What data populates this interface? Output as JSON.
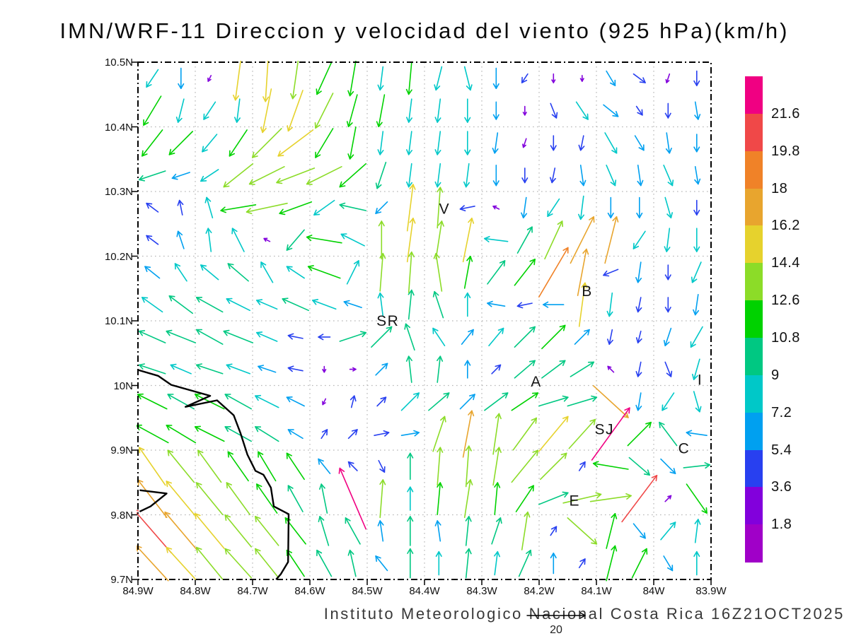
{
  "title": "IMN/WRF-11 Direccion y velocidad del viento (925 hPa)(km/h)",
  "footer": "Instituto Meteorologico Nacional Costa Rica 16Z21OCT2025",
  "axes": {
    "x_labels": [
      "84.9W",
      "84.8W",
      "84.7W",
      "84.6W",
      "84.5W",
      "84.4W",
      "84.3W",
      "84.2W",
      "84.1W",
      "84W",
      "83.9W"
    ],
    "y_labels": [
      "10.5N",
      "10.4N",
      "10.3N",
      "10.2N",
      "10.1N",
      "10N",
      "9.9N",
      "9.8N",
      "9.7N"
    ],
    "lon_range": [
      -84.9,
      -83.9
    ],
    "lat_range": [
      9.7,
      10.5
    ],
    "grid_step_deg": 0.1,
    "gridline_color": "#b8b8b8"
  },
  "colorbar": {
    "labels_top_to_bottom": [
      "21.6",
      "19.8",
      "18",
      "16.2",
      "14.4",
      "12.6",
      "10.8",
      "9",
      "7.2",
      "5.4",
      "3.6",
      "1.8"
    ],
    "levels": [
      1.8,
      3.6,
      5.4,
      7.2,
      9,
      10.8,
      12.6,
      14.4,
      16.2,
      18,
      19.8,
      21.6
    ],
    "colors": [
      "#a000c8",
      "#8200dc",
      "#2840f0",
      "#00a0f0",
      "#00c8c8",
      "#00c882",
      "#00d200",
      "#8cdc28",
      "#e6d22d",
      "#e8a52e",
      "#f08228",
      "#f04848",
      "#f00082"
    ]
  },
  "reference_arrow": {
    "value": 20,
    "label": "20"
  },
  "stations": [
    {
      "label": "V",
      "lon": -84.365,
      "lat": 10.273
    },
    {
      "label": "B",
      "lon": -84.116,
      "lat": 10.146
    },
    {
      "label": "SR",
      "lon": -84.464,
      "lat": 10.1
    },
    {
      "label": "A",
      "lon": -84.205,
      "lat": 10.006
    },
    {
      "label": "SJ",
      "lon": -84.086,
      "lat": 9.932
    },
    {
      "label": "C",
      "lon": -83.947,
      "lat": 9.903
    },
    {
      "label": "E",
      "lon": -84.138,
      "lat": 9.822
    },
    {
      "label": "I",
      "lon": -83.919,
      "lat": 10.009
    }
  ],
  "coastline": {
    "main": [
      [
        -84.9,
        10.024
      ],
      [
        -84.865,
        10.015
      ],
      [
        -84.842,
        10.001
      ],
      [
        -84.774,
        9.984
      ],
      [
        -84.817,
        9.967
      ],
      [
        -84.762,
        9.977
      ],
      [
        -84.733,
        9.954
      ],
      [
        -84.721,
        9.926
      ],
      [
        -84.709,
        9.893
      ],
      [
        -84.695,
        9.868
      ],
      [
        -84.681,
        9.862
      ],
      [
        -84.668,
        9.842
      ],
      [
        -84.663,
        9.813
      ],
      [
        -84.637,
        9.801
      ],
      [
        -84.638,
        9.727
      ],
      [
        -84.651,
        9.708
      ],
      [
        -84.659,
        9.7
      ]
    ],
    "spit": [
      [
        -84.897,
        9.838
      ],
      [
        -84.85,
        9.833
      ],
      [
        -84.878,
        9.813
      ],
      [
        -84.897,
        9.805
      ]
    ]
  },
  "chart_data": {
    "type": "vector-field",
    "title": "IMN/WRF-11 Direccion y velocidad del viento (925 hPa)(km/h)",
    "units": "km/h",
    "level": "925 hPa",
    "valid_time": "16Z21OCT2025",
    "speed_levels": [
      1.8,
      3.6,
      5.4,
      7.2,
      9,
      10.8,
      12.6,
      14.4,
      16.2,
      18,
      19.8,
      21.6
    ],
    "reference_speed": 20,
    "grid_lons": [
      -84.875,
      -84.825,
      -84.775,
      -84.725,
      -84.675,
      -84.625,
      -84.575,
      -84.525,
      -84.475,
      -84.425,
      -84.375,
      -84.325,
      -84.275,
      -84.225,
      -84.175,
      -84.125,
      -84.075,
      -84.025,
      -83.975,
      -83.925
    ],
    "grid_lats": [
      10.475,
      10.425,
      10.375,
      10.325,
      10.275,
      10.225,
      10.175,
      10.125,
      10.075,
      10.025,
      9.975,
      9.925,
      9.875,
      9.825,
      9.775,
      9.725
    ],
    "uv": [
      [
        [
          -4,
          -6
        ],
        [
          0,
          -7
        ],
        [
          -1,
          -2
        ],
        [
          -2,
          -15
        ],
        [
          -1,
          -16
        ],
        [
          -2,
          -14
        ],
        [
          -5,
          -11
        ],
        [
          -2,
          -12
        ],
        [
          -1,
          -8
        ],
        [
          -1,
          -11
        ],
        [
          -2,
          -8
        ],
        [
          2,
          -8
        ],
        [
          0,
          -7
        ],
        [
          -2,
          -3
        ],
        [
          0,
          -3
        ],
        [
          0,
          -2
        ],
        [
          3,
          -5
        ],
        [
          4,
          -3
        ],
        [
          -1,
          -3
        ],
        [
          0,
          -5
        ]
      ],
      [
        [
          -6,
          -10
        ],
        [
          -2,
          -8
        ],
        [
          -4,
          -6
        ],
        [
          -1,
          -8
        ],
        [
          -3,
          -15
        ],
        [
          -5,
          -14
        ],
        [
          -6,
          -12
        ],
        [
          -3,
          -11
        ],
        [
          -2,
          -11
        ],
        [
          -1,
          -8
        ],
        [
          -1,
          -8
        ],
        [
          0,
          -8
        ],
        [
          0,
          -6
        ],
        [
          0,
          -3
        ],
        [
          2,
          -5
        ],
        [
          4,
          -6
        ],
        [
          5,
          -4
        ],
        [
          2,
          -3
        ],
        [
          0,
          -5
        ],
        [
          1,
          -6
        ]
      ],
      [
        [
          -7,
          -9
        ],
        [
          -8,
          -8
        ],
        [
          -5,
          -6
        ],
        [
          -6,
          -9
        ],
        [
          -10,
          -10
        ],
        [
          -12,
          -9
        ],
        [
          -6,
          -10
        ],
        [
          -2,
          -11
        ],
        [
          -1,
          -8
        ],
        [
          -1,
          -8
        ],
        [
          -1,
          -8
        ],
        [
          0,
          -8
        ],
        [
          -1,
          -7
        ],
        [
          -1,
          -3
        ],
        [
          0,
          -5
        ],
        [
          -1,
          -5
        ],
        [
          4,
          -7
        ],
        [
          3,
          -5
        ],
        [
          1,
          -7
        ],
        [
          0,
          -6
        ]
      ],
      [
        [
          -9,
          -3
        ],
        [
          -6,
          -2
        ],
        [
          -6,
          -4
        ],
        [
          -10,
          -8
        ],
        [
          -12,
          -6
        ],
        [
          -13,
          -5
        ],
        [
          -12,
          -6
        ],
        [
          -9,
          -8
        ],
        [
          -3,
          -9
        ],
        [
          -1,
          -8
        ],
        [
          -1,
          -8
        ],
        [
          -1,
          -8
        ],
        [
          0,
          -7
        ],
        [
          0,
          -5
        ],
        [
          -1,
          -5
        ],
        [
          1,
          -7
        ],
        [
          3,
          -7
        ],
        [
          1,
          -7
        ],
        [
          3,
          -7
        ],
        [
          1,
          -6
        ]
      ],
      [
        [
          -4,
          3
        ],
        [
          -1,
          5
        ],
        [
          -2,
          7
        ],
        [
          -12,
          -2
        ],
        [
          -14,
          -3
        ],
        [
          -11,
          -4
        ],
        [
          -7,
          -5
        ],
        [
          -9,
          2
        ],
        [
          -4,
          -4
        ],
        [
          2,
          16
        ],
        [
          1,
          14
        ],
        [
          -5,
          -1
        ],
        [
          -2,
          1
        ],
        [
          -1,
          -7
        ],
        [
          -4,
          -6
        ],
        [
          -1,
          -8
        ],
        [
          0,
          -7
        ],
        [
          0,
          -7
        ],
        [
          2,
          -7
        ],
        [
          0,
          -5
        ]
      ],
      [
        [
          -4,
          3
        ],
        [
          -2,
          6
        ],
        [
          -1,
          8
        ],
        [
          -4,
          8
        ],
        [
          -2,
          1
        ],
        [
          -6,
          -7
        ],
        [
          -12,
          2
        ],
        [
          -8,
          4
        ],
        [
          0,
          13
        ],
        [
          2,
          15
        ],
        [
          2,
          13
        ],
        [
          3,
          15
        ],
        [
          -8,
          1
        ],
        [
          5,
          9
        ],
        [
          6,
          13
        ],
        [
          8,
          16
        ],
        [
          4,
          16
        ],
        [
          -4,
          -6
        ],
        [
          -1,
          -8
        ],
        [
          0,
          -8
        ]
      ],
      [
        [
          -5,
          4
        ],
        [
          -4,
          6
        ],
        [
          -6,
          5
        ],
        [
          -7,
          6
        ],
        [
          -4,
          7
        ],
        [
          -6,
          4
        ],
        [
          -11,
          4
        ],
        [
          4,
          8
        ],
        [
          1,
          13
        ],
        [
          1,
          14
        ],
        [
          -2,
          13
        ],
        [
          2,
          11
        ],
        [
          6,
          8
        ],
        [
          7,
          9
        ],
        [
          10,
          17
        ],
        [
          3,
          16
        ],
        [
          -5,
          -2
        ],
        [
          -1,
          -7
        ],
        [
          0,
          -5
        ],
        [
          -3,
          -7
        ]
      ],
      [
        [
          -7,
          5
        ],
        [
          -8,
          6
        ],
        [
          -9,
          5
        ],
        [
          -8,
          4
        ],
        [
          -7,
          3
        ],
        [
          -9,
          4
        ],
        [
          -8,
          3
        ],
        [
          -6,
          2
        ],
        [
          -1,
          8
        ],
        [
          1,
          10
        ],
        [
          -3,
          9
        ],
        [
          0,
          8
        ],
        [
          -6,
          1
        ],
        [
          -5,
          -1
        ],
        [
          -7,
          0
        ],
        [
          2,
          15
        ],
        [
          -1,
          -8
        ],
        [
          -1,
          -5
        ],
        [
          0,
          -5
        ],
        [
          -1,
          -7
        ]
      ],
      [
        [
          -9,
          4
        ],
        [
          -10,
          4
        ],
        [
          -9,
          5
        ],
        [
          -10,
          4
        ],
        [
          -7,
          3
        ],
        [
          -5,
          1
        ],
        [
          -4,
          0
        ],
        [
          9,
          3
        ],
        [
          7,
          7
        ],
        [
          -3,
          9
        ],
        [
          -4,
          6
        ],
        [
          4,
          5
        ],
        [
          5,
          6
        ],
        [
          7,
          7
        ],
        [
          8,
          8
        ],
        [
          5,
          5
        ],
        [
          -1,
          -5
        ],
        [
          -1,
          -4
        ],
        [
          -2,
          -6
        ],
        [
          -4,
          -7
        ]
      ],
      [
        [
          -9,
          3
        ],
        [
          -7,
          3
        ],
        [
          -9,
          3
        ],
        [
          -8,
          3
        ],
        [
          -6,
          2
        ],
        [
          -5,
          1
        ],
        [
          0,
          -2
        ],
        [
          2,
          0
        ],
        [
          4,
          4
        ],
        [
          -1,
          9
        ],
        [
          1,
          9
        ],
        [
          0,
          6
        ],
        [
          3,
          3
        ],
        [
          7,
          6
        ],
        [
          8,
          6
        ],
        [
          8,
          5
        ],
        [
          -2,
          2
        ],
        [
          -1,
          -5
        ],
        [
          2,
          -5
        ],
        [
          -2,
          -7
        ]
      ],
      [
        [
          -10,
          5
        ],
        [
          -9,
          5
        ],
        [
          -10,
          5
        ],
        [
          -9,
          5
        ],
        [
          -8,
          4
        ],
        [
          -6,
          3
        ],
        [
          -1,
          -2
        ],
        [
          1,
          4
        ],
        [
          3,
          3
        ],
        [
          6,
          6
        ],
        [
          7,
          6
        ],
        [
          5,
          5
        ],
        [
          8,
          6
        ],
        [
          9,
          6
        ],
        [
          10,
          3
        ],
        [
          10,
          3
        ],
        [
          12,
          -11
        ],
        [
          -1,
          -6
        ],
        [
          -4,
          -6
        ],
        [
          2,
          -7
        ]
      ],
      [
        [
          -11,
          6
        ],
        [
          -10,
          6
        ],
        [
          -10,
          5
        ],
        [
          -9,
          5
        ],
        [
          -8,
          5
        ],
        [
          -5,
          3
        ],
        [
          2,
          3
        ],
        [
          3,
          3
        ],
        [
          5,
          1
        ],
        [
          6,
          1
        ],
        [
          4,
          12
        ],
        [
          3,
          16
        ],
        [
          2,
          14
        ],
        [
          8,
          11
        ],
        [
          10,
          12
        ],
        [
          9,
          10
        ],
        [
          13,
          18
        ],
        [
          8,
          8
        ],
        [
          -6,
          8
        ],
        [
          -7,
          1
        ]
      ],
      [
        [
          -9,
          13
        ],
        [
          -9,
          11
        ],
        [
          -8,
          11
        ],
        [
          -7,
          10
        ],
        [
          -6,
          10
        ],
        [
          -6,
          9
        ],
        [
          -4,
          5
        ],
        [
          -3,
          3
        ],
        [
          2,
          -4
        ],
        [
          0,
          9
        ],
        [
          1,
          13
        ],
        [
          1,
          14
        ],
        [
          2,
          13
        ],
        [
          9,
          11
        ],
        [
          9,
          9
        ],
        [
          2,
          3
        ],
        [
          -12,
          2
        ],
        [
          7,
          -6
        ],
        [
          5,
          -5
        ],
        [
          9,
          1
        ]
      ],
      [
        [
          -10,
          13
        ],
        [
          -10,
          12
        ],
        [
          -9,
          11
        ],
        [
          -8,
          11
        ],
        [
          -7,
          10
        ],
        [
          -5,
          9
        ],
        [
          -2,
          10
        ],
        [
          -9,
          21
        ],
        [
          1,
          13
        ],
        [
          0,
          8
        ],
        [
          1,
          11
        ],
        [
          2,
          13
        ],
        [
          1,
          11
        ],
        [
          6,
          9
        ],
        [
          10,
          4
        ],
        [
          13,
          3
        ],
        [
          14,
          2
        ],
        [
          12,
          16
        ],
        [
          2,
          2
        ],
        [
          7,
          -10
        ]
      ],
      [
        [
          -13,
          15
        ],
        [
          -11,
          13
        ],
        [
          -10,
          12
        ],
        [
          -9,
          11
        ],
        [
          -8,
          10
        ],
        [
          -7,
          9
        ],
        [
          -3,
          10
        ],
        [
          -5,
          9
        ],
        [
          -1,
          7
        ],
        [
          0,
          10
        ],
        [
          -1,
          7
        ],
        [
          1,
          10
        ],
        [
          3,
          9
        ],
        [
          2,
          13
        ],
        [
          2,
          3
        ],
        [
          10,
          -9
        ],
        [
          3,
          12
        ],
        [
          4,
          -5
        ],
        [
          5,
          6
        ],
        [
          1,
          8
        ]
      ],
      [
        [
          -11,
          12
        ],
        [
          -10,
          11
        ],
        [
          -9,
          11
        ],
        [
          -9,
          10
        ],
        [
          -8,
          10
        ],
        [
          -6,
          9
        ],
        [
          -5,
          9
        ],
        [
          -2,
          9
        ],
        [
          -4,
          5
        ],
        [
          0,
          10
        ],
        [
          0,
          8
        ],
        [
          1,
          10
        ],
        [
          1,
          8
        ],
        [
          4,
          9
        ],
        [
          0,
          7
        ],
        [
          2,
          3
        ],
        [
          3,
          12
        ],
        [
          5,
          10
        ],
        [
          3,
          -5
        ],
        [
          0,
          8
        ]
      ]
    ]
  }
}
